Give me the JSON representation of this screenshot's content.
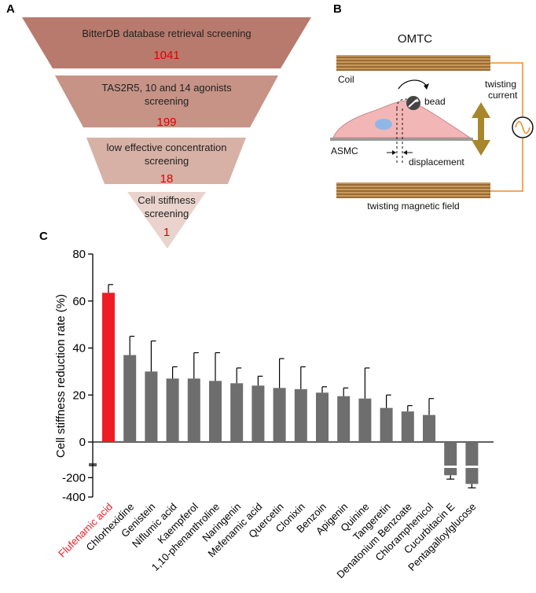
{
  "panel_labels": {
    "a": "A",
    "b": "B",
    "c": "C"
  },
  "colors": {
    "funnel_1": "#b87a6c",
    "funnel_2": "#c69386",
    "funnel_3": "#d7b1a6",
    "funnel_4": "#e9d3cc",
    "count_text": "#e00000",
    "bar_gray": "#6e6e6e",
    "bar_highlight": "#ee1c24",
    "coil_brown": "#8b5a2b",
    "wire_orange": "#f08a24",
    "cell_pink": "#f3b6b6",
    "arrow_gold": "#a8862b",
    "nucleus_blue": "#8fb7e6"
  },
  "funnel": [
    {
      "text": "BitterDB database retrieval screening",
      "count": "1041"
    },
    {
      "text_line1": "TAS2R5, 10 and 14 agonists",
      "text_line2": "screening",
      "count": "199"
    },
    {
      "text_line1": "low effective concentration",
      "text_line2": "screening",
      "count": "18"
    },
    {
      "text_line1": "Cell stiffness",
      "text_line2": "screening",
      "count": "1"
    }
  ],
  "omtc": {
    "title": "OMTC",
    "coil": "Coil",
    "twisting_current_line1": "twisting",
    "twisting_current_line2": "current",
    "bead": "bead",
    "asmc": "ASMC",
    "displacement": "displacement",
    "field": "twisting magnetic field"
  },
  "chart_data": {
    "type": "bar",
    "ylabel": "Cell stiffness reduction rate (%)",
    "xlabel": "",
    "axis_break": true,
    "ylim_upper": [
      0,
      80
    ],
    "ylim_lower": [
      -400,
      -100
    ],
    "yticks_upper": [
      "80",
      "60",
      "40",
      "20",
      "0"
    ],
    "yticks_lower": [
      "-200",
      "-400"
    ],
    "categories": [
      "Flufenamic acid",
      "Chlorhexidine",
      "Genistein",
      "Niflumic acid",
      "Kaempferol",
      "1,10-phenanthroline",
      "Naringenin",
      "Mefenamic acid",
      "Quercetin",
      "Clonixin",
      "Benzoin",
      "Apigenin",
      "Quinine",
      "Tangeretin",
      "Denatonium Benzoate",
      "Chloramphenicol",
      "Cucurbitacin E",
      "Pentagalloylglucose"
    ],
    "values": [
      63.5,
      37,
      30,
      27,
      27,
      26,
      25,
      24,
      23,
      22.5,
      21,
      19.5,
      18.5,
      14.5,
      13,
      11.5,
      -175,
      -265
    ],
    "errors": [
      3.5,
      8,
      13,
      5,
      11,
      12,
      6.5,
      4,
      12.5,
      9.5,
      2.5,
      3.5,
      13,
      5.5,
      2.5,
      7,
      40,
      40
    ],
    "highlight": [
      "Flufenamic acid"
    ]
  }
}
